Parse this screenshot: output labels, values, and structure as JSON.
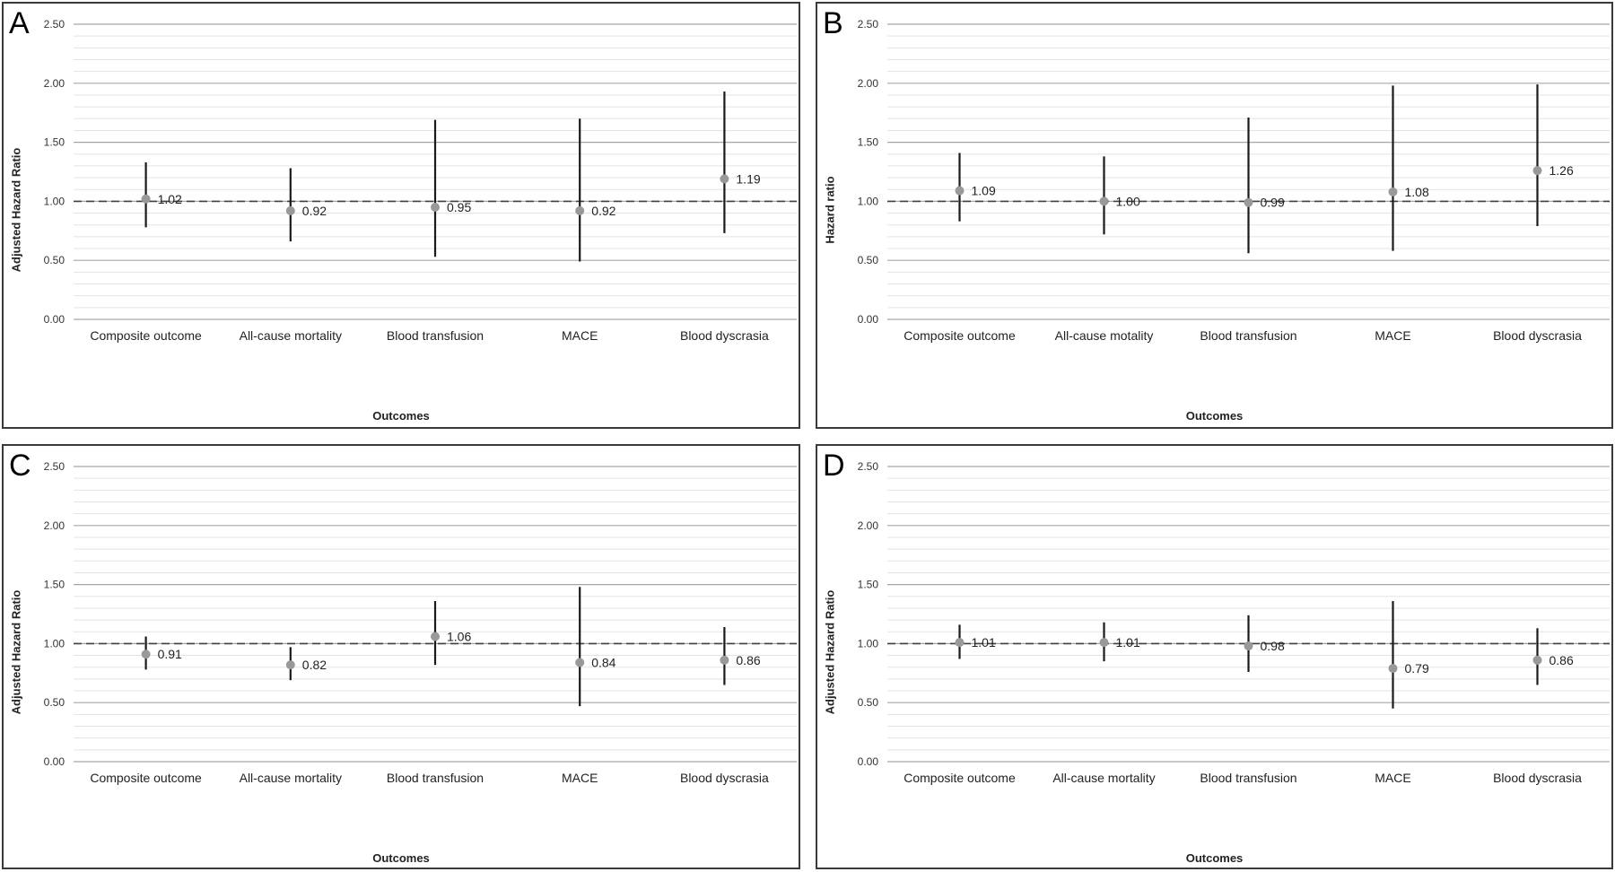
{
  "chart_data": [
    {
      "panel": "A",
      "type": "scatter",
      "ylabel": "Adjusted Hazard Ratio",
      "xlabel": "Outcomes",
      "ylim": [
        0,
        2.5
      ],
      "yticks": [
        "0.00",
        "0.50",
        "1.00",
        "1.50",
        "2.00",
        "2.50"
      ],
      "reference_line": 1.0,
      "categories": [
        "Composite outcome",
        "All-cause mortality",
        "Blood transfusion",
        "MACE",
        "Blood dyscrasia"
      ],
      "values": [
        1.02,
        0.92,
        0.95,
        0.92,
        1.19
      ],
      "value_labels": [
        "1.02",
        "0.92",
        "0.95",
        "0.92",
        "1.19"
      ],
      "ci_lower": [
        0.78,
        0.66,
        0.53,
        0.49,
        0.73
      ],
      "ci_upper": [
        1.33,
        1.28,
        1.69,
        1.7,
        1.93
      ]
    },
    {
      "panel": "B",
      "type": "scatter",
      "ylabel": "Hazard ratio",
      "xlabel": "Outcomes",
      "ylim": [
        0,
        2.5
      ],
      "yticks": [
        "0.00",
        "0.50",
        "1.00",
        "1.50",
        "2.00",
        "2.50"
      ],
      "reference_line": 1.0,
      "categories": [
        "Composite outcome",
        "All-cause motality",
        "Blood transfusion",
        "MACE",
        "Blood dyscrasia"
      ],
      "values": [
        1.09,
        1.0,
        0.99,
        1.08,
        1.26
      ],
      "value_labels": [
        "1.09",
        "1.00",
        "0.99",
        "1.08",
        "1.26"
      ],
      "ci_lower": [
        0.83,
        0.72,
        0.56,
        0.58,
        0.79
      ],
      "ci_upper": [
        1.41,
        1.38,
        1.71,
        1.98,
        1.99
      ]
    },
    {
      "panel": "C",
      "type": "scatter",
      "ylabel": "Adjusted Hazard Ratio",
      "xlabel": "Outcomes",
      "ylim": [
        0,
        2.5
      ],
      "yticks": [
        "0.00",
        "0.50",
        "1.00",
        "1.50",
        "2.00",
        "2.50"
      ],
      "reference_line": 1.0,
      "categories": [
        "Composite outcome",
        "All-cause mortality",
        "Blood transfusion",
        "MACE",
        "Blood dyscrasia"
      ],
      "values": [
        0.91,
        0.82,
        1.06,
        0.84,
        0.86
      ],
      "value_labels": [
        "0.91",
        "0.82",
        "1.06",
        "0.84",
        "0.86"
      ],
      "ci_lower": [
        0.78,
        0.69,
        0.82,
        0.47,
        0.65
      ],
      "ci_upper": [
        1.06,
        0.97,
        1.36,
        1.48,
        1.14
      ]
    },
    {
      "panel": "D",
      "type": "scatter",
      "ylabel": "Adjusted Hazard Ratio",
      "xlabel": "Outcomes",
      "ylim": [
        0,
        2.5
      ],
      "yticks": [
        "0.00",
        "0.50",
        "1.00",
        "1.50",
        "2.00",
        "2.50"
      ],
      "reference_line": 1.0,
      "categories": [
        "Composite outcome",
        "All-cause mortality",
        "Blood transfusion",
        "MACE",
        "Blood dyscrasia"
      ],
      "values": [
        1.01,
        1.01,
        0.98,
        0.79,
        0.86
      ],
      "value_labels": [
        "1.01",
        "1.01",
        "0.98",
        "0.79",
        "0.86"
      ],
      "ci_lower": [
        0.87,
        0.85,
        0.76,
        0.45,
        0.65
      ],
      "ci_upper": [
        1.16,
        1.18,
        1.24,
        1.36,
        1.13
      ]
    }
  ],
  "colors": {
    "point": "#999999",
    "ci_line": "#1a1a1a",
    "major_grid": "#a6a6a6",
    "minor_grid": "#e3e3e3",
    "reference_line": "#404040"
  }
}
